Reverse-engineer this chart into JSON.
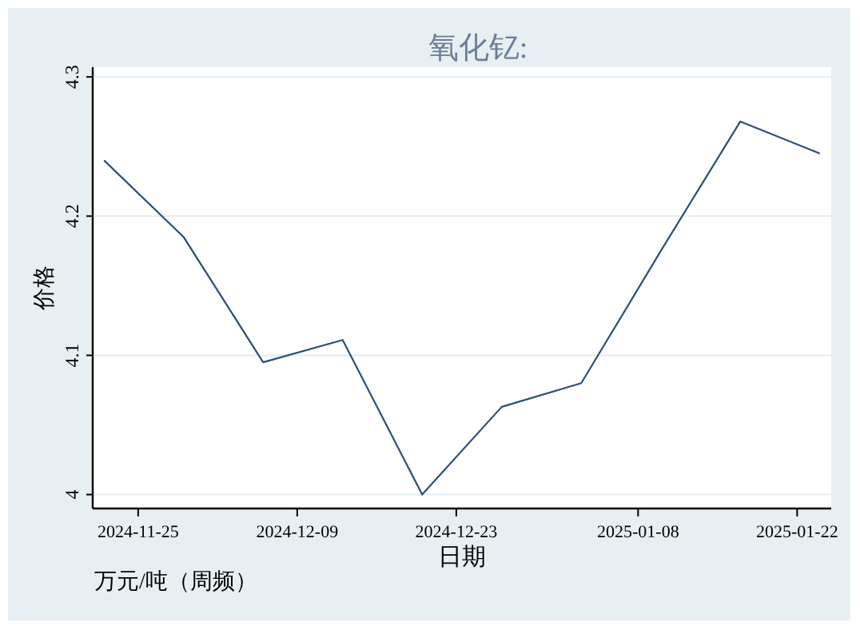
{
  "chart_data": {
    "type": "line",
    "title": "氧化钇:",
    "xlabel": "日期",
    "ylabel": "价格",
    "annotations": [
      "万元/吨（周频）"
    ],
    "x": [
      "2024-11-22",
      "2024-11-29",
      "2024-12-06",
      "2024-12-13",
      "2024-12-20",
      "2024-12-27",
      "2025-01-03",
      "2025-01-10",
      "2025-01-17",
      "2025-01-24"
    ],
    "series": [
      {
        "color": "#2b4f7a",
        "values": [
          4.24,
          4.185,
          4.095,
          4.111,
          4.0,
          4.063,
          4.08,
          4.175,
          4.268,
          4.245
        ]
      }
    ],
    "xlim": [
      "2024-11-21",
      "2025-01-25"
    ],
    "xticks": [
      "2024-11-25",
      "2024-12-09",
      "2024-12-23",
      "2025-01-08",
      "2025-01-22"
    ],
    "ylim": [
      3.99,
      4.307
    ],
    "yticks": [
      4,
      4.1,
      4.2,
      4.3
    ],
    "grid": "y",
    "marker": "none",
    "line_style": "solid"
  }
}
